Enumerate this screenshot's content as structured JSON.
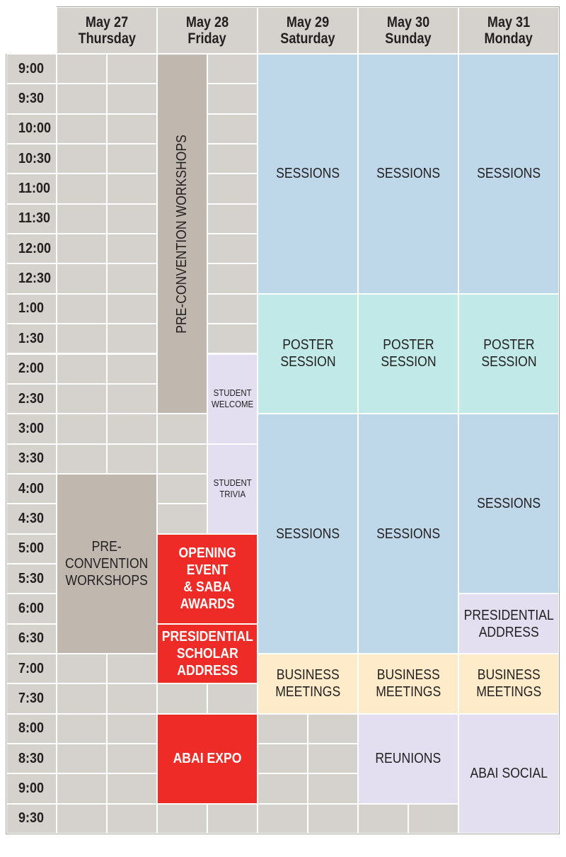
{
  "colors": {
    "empty": "#d5d1cc",
    "preconvention": "#c0b8af",
    "sessions": "#bed8ea",
    "poster": "#c0e9e7",
    "student": "#e3def0",
    "opening": "#ee2b26",
    "business": "#fdebc9",
    "reunions": "#e3def0"
  },
  "days": [
    {
      "date": "May 27",
      "weekday": "Thursday"
    },
    {
      "date": "May 28",
      "weekday": "Friday"
    },
    {
      "date": "May 29",
      "weekday": "Saturday"
    },
    {
      "date": "May 30",
      "weekday": "Sunday"
    },
    {
      "date": "May 31",
      "weekday": "Monday"
    }
  ],
  "times": [
    "9:00",
    "9:30",
    "10:00",
    "10:30",
    "11:00",
    "11:30",
    "12:00",
    "12:30",
    "1:00",
    "1:30",
    "2:00",
    "2:30",
    "3:00",
    "3:30",
    "4:00",
    "4:30",
    "5:00",
    "5:30",
    "6:00",
    "6:30",
    "7:00",
    "7:30",
    "8:00",
    "8:30",
    "9:00",
    "9:30"
  ],
  "events": [
    {
      "name": "friday-pre-convention-workshops",
      "label": "PRE-CONVENTION WORKSHOPS",
      "day": 1,
      "half": 0,
      "start": 0,
      "end": 12,
      "color": "preconvention",
      "style": "vert"
    },
    {
      "name": "saturday-morning-sessions",
      "label": "SESSIONS",
      "day": 2,
      "start": 0,
      "end": 8,
      "color": "sessions",
      "style": "normal"
    },
    {
      "name": "sunday-morning-sessions",
      "label": "SESSIONS",
      "day": 3,
      "start": 0,
      "end": 8,
      "color": "sessions",
      "style": "normal"
    },
    {
      "name": "monday-morning-sessions",
      "label": "SESSIONS",
      "day": 4,
      "start": 0,
      "end": 8,
      "color": "sessions",
      "style": "normal"
    },
    {
      "name": "saturday-poster-session",
      "label": "POSTER\nSESSION",
      "day": 2,
      "start": 8,
      "end": 12,
      "color": "poster",
      "style": "normal"
    },
    {
      "name": "sunday-poster-session",
      "label": "POSTER\nSESSION",
      "day": 3,
      "start": 8,
      "end": 12,
      "color": "poster",
      "style": "normal"
    },
    {
      "name": "monday-poster-session",
      "label": "POSTER\nSESSION",
      "day": 4,
      "start": 8,
      "end": 12,
      "color": "poster",
      "style": "normal"
    },
    {
      "name": "student-welcome",
      "label": "STUDENT\nWELCOME",
      "day": 1,
      "half": 1,
      "start": 10,
      "end": 13,
      "color": "student",
      "style": "small"
    },
    {
      "name": "student-trivia",
      "label": "STUDENT\nTRIVIA",
      "day": 1,
      "half": 1,
      "start": 13,
      "end": 16,
      "color": "student",
      "style": "small"
    },
    {
      "name": "thursday-pre-convention-workshops",
      "label": "PRE-\nCONVENTION\nWORKSHOPS",
      "day": 0,
      "start": 14,
      "end": 20,
      "color": "preconvention",
      "style": "normal"
    },
    {
      "name": "saturday-afternoon-sessions",
      "label": "SESSIONS",
      "day": 2,
      "start": 12,
      "end": 20,
      "color": "sessions",
      "style": "normal"
    },
    {
      "name": "sunday-afternoon-sessions",
      "label": "SESSIONS",
      "day": 3,
      "start": 12,
      "end": 20,
      "color": "sessions",
      "style": "normal"
    },
    {
      "name": "monday-afternoon-sessions",
      "label": "SESSIONS",
      "day": 4,
      "start": 12,
      "end": 18,
      "color": "sessions",
      "style": "normal"
    },
    {
      "name": "presidential-address",
      "label": "PRESIDENTIAL\nADDRESS",
      "day": 4,
      "start": 18,
      "end": 20,
      "color": "student",
      "style": "normal"
    },
    {
      "name": "opening-event-saba-awards",
      "label": "OPENING\nEVENT\n& SABA\nAWARDS",
      "day": 1,
      "start": 16,
      "end": 19,
      "color": "opening",
      "style": "bold"
    },
    {
      "name": "presidential-scholar-address",
      "label": "PRESIDENTIAL\nSCHOLAR\nADDRESS",
      "day": 1,
      "start": 19,
      "end": 21,
      "color": "opening",
      "style": "bold"
    },
    {
      "name": "saturday-business-meetings",
      "label": "BUSINESS\nMEETINGS",
      "day": 2,
      "start": 20,
      "end": 22,
      "color": "business",
      "style": "normal"
    },
    {
      "name": "sunday-business-meetings",
      "label": "BUSINESS\nMEETINGS",
      "day": 3,
      "start": 20,
      "end": 22,
      "color": "business",
      "style": "normal"
    },
    {
      "name": "monday-business-meetings",
      "label": "BUSINESS\nMEETINGS",
      "day": 4,
      "start": 20,
      "end": 22,
      "color": "business",
      "style": "normal"
    },
    {
      "name": "abai-expo",
      "label": "ABAI EXPO",
      "day": 1,
      "start": 22,
      "end": 25,
      "color": "opening",
      "style": "bold"
    },
    {
      "name": "reunions",
      "label": "REUNIONS",
      "day": 3,
      "start": 22,
      "end": 25,
      "color": "reunions",
      "style": "normal"
    },
    {
      "name": "abai-social",
      "label": "ABAI SOCIAL",
      "day": 4,
      "start": 22,
      "end": 26,
      "color": "reunions",
      "style": "normal"
    }
  ]
}
